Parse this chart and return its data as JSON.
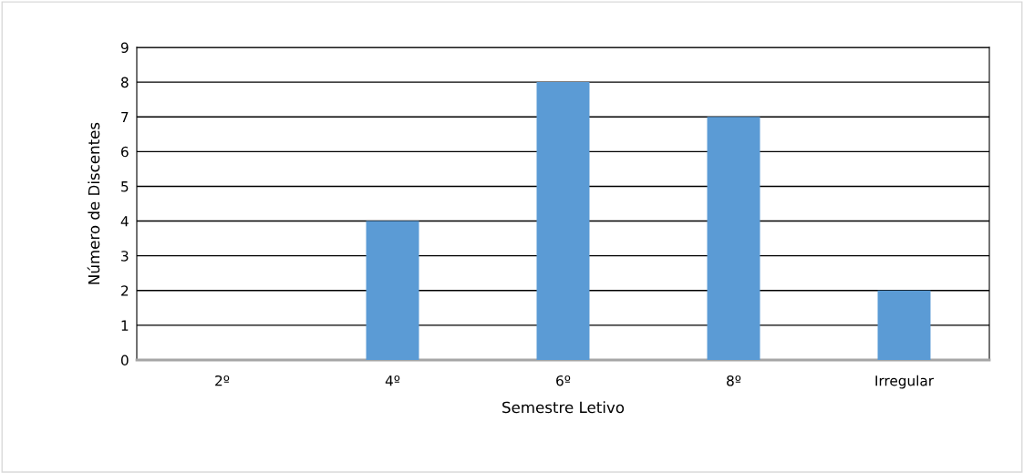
{
  "chart_data": {
    "type": "bar",
    "xlabel": "Semestre Letivo",
    "ylabel": "Número de Discentes",
    "categories": [
      "2º",
      "4º",
      "6º",
      "8º",
      "Irregular"
    ],
    "values": [
      0,
      4,
      8,
      7,
      2
    ],
    "color": "#5b9bd5",
    "ylim": [
      0,
      9
    ],
    "yticks": [
      0,
      1,
      2,
      3,
      4,
      5,
      6,
      7,
      8,
      9
    ],
    "grid": "y"
  }
}
